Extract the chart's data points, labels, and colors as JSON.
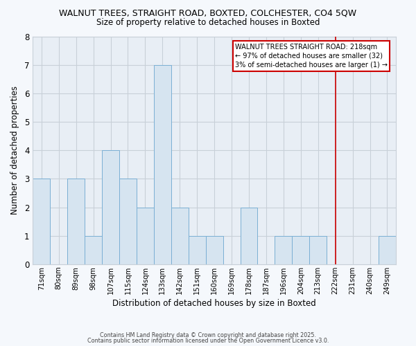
{
  "title1": "WALNUT TREES, STRAIGHT ROAD, BOXTED, COLCHESTER, CO4 5QW",
  "title2": "Size of property relative to detached houses in Boxted",
  "xlabel": "Distribution of detached houses by size in Boxted",
  "ylabel": "Number of detached properties",
  "categories": [
    "71sqm",
    "80sqm",
    "89sqm",
    "98sqm",
    "107sqm",
    "115sqm",
    "124sqm",
    "133sqm",
    "142sqm",
    "151sqm",
    "160sqm",
    "169sqm",
    "178sqm",
    "187sqm",
    "196sqm",
    "204sqm",
    "213sqm",
    "222sqm",
    "231sqm",
    "240sqm",
    "249sqm"
  ],
  "values": [
    3,
    0,
    3,
    1,
    4,
    3,
    2,
    7,
    2,
    1,
    1,
    0,
    2,
    0,
    1,
    1,
    1,
    0,
    0,
    0,
    1
  ],
  "bar_color": "#d6e4f0",
  "bar_edge_color": "#7aafd4",
  "grid_color": "#c8d0d8",
  "bg_color": "#e8eef5",
  "fig_bg_color": "#f5f8fc",
  "vline_color": "#cc0000",
  "vline_x": 17.0,
  "annotation_text": "WALNUT TREES STRAIGHT ROAD: 218sqm\n← 97% of detached houses are smaller (32)\n3% of semi-detached houses are larger (1) →",
  "annotation_box_color": "#cc0000",
  "footer1": "Contains HM Land Registry data © Crown copyright and database right 2025.",
  "footer2": "Contains public sector information licensed under the Open Government Licence v3.0.",
  "ylim": [
    0,
    8
  ],
  "yticks": [
    0,
    1,
    2,
    3,
    4,
    5,
    6,
    7,
    8
  ]
}
